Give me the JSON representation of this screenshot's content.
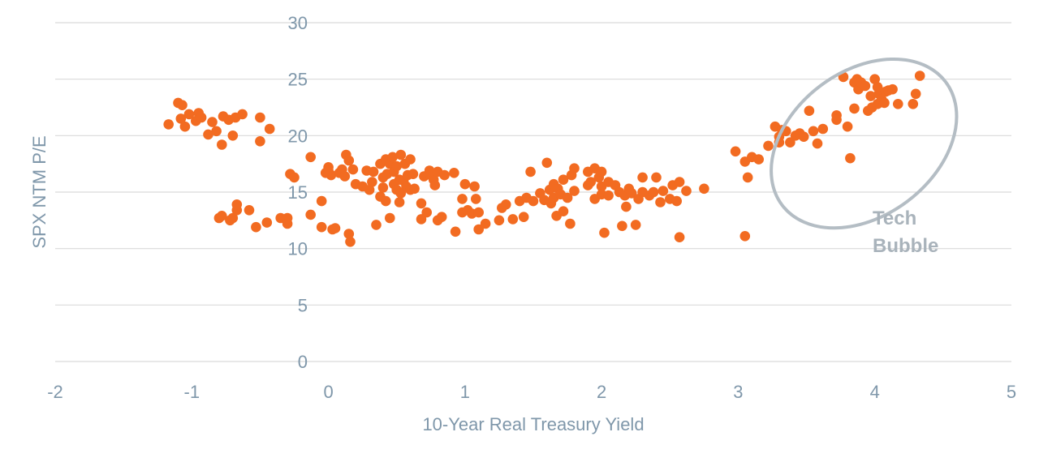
{
  "chart_data": {
    "type": "scatter",
    "title": "",
    "xlabel": "10-Year Real Treasury Yield",
    "ylabel": "SPX NTM P/E",
    "xlim": [
      -2,
      5
    ],
    "ylim": [
      0,
      30
    ],
    "xticks": [
      -2,
      -1,
      0,
      1,
      2,
      3,
      4,
      5
    ],
    "yticks": [
      0,
      5,
      10,
      15,
      20,
      25,
      30
    ],
    "grid": "horizontal",
    "legend": "none",
    "point_color": "#f26b21",
    "gridline_color": "#d9d9d9",
    "annotation": {
      "text_line1": "Tech",
      "text_line2": "Bubble",
      "ellipse_center": [
        3.92,
        19.3
      ],
      "ellipse_radius_x": 0.75,
      "ellipse_radius_y": 6.4,
      "ellipse_color": "#b4bdc4"
    },
    "series": [
      {
        "points": [
          [
            -1.17,
            21.0
          ],
          [
            -1.1,
            22.9
          ],
          [
            -1.08,
            21.5
          ],
          [
            -1.07,
            22.7
          ],
          [
            -1.05,
            20.8
          ],
          [
            -1.02,
            21.9
          ],
          [
            -0.97,
            21.3
          ],
          [
            -0.95,
            22.0
          ],
          [
            -0.93,
            21.6
          ],
          [
            -0.88,
            20.1
          ],
          [
            -0.85,
            21.2
          ],
          [
            -0.82,
            20.4
          ],
          [
            -0.78,
            19.2
          ],
          [
            -0.77,
            21.7
          ],
          [
            -0.73,
            21.4
          ],
          [
            -0.7,
            20.0
          ],
          [
            -0.68,
            21.6
          ],
          [
            -0.63,
            21.9
          ],
          [
            -0.5,
            21.6
          ],
          [
            -0.5,
            19.5
          ],
          [
            -0.43,
            20.6
          ],
          [
            -0.8,
            12.7
          ],
          [
            -0.78,
            12.9
          ],
          [
            -0.72,
            12.5
          ],
          [
            -0.7,
            12.7
          ],
          [
            -0.67,
            13.4
          ],
          [
            -0.67,
            13.9
          ],
          [
            -0.58,
            13.4
          ],
          [
            -0.53,
            11.9
          ],
          [
            -0.45,
            12.3
          ],
          [
            -0.35,
            12.7
          ],
          [
            -0.3,
            12.7
          ],
          [
            -0.3,
            12.2
          ],
          [
            -0.28,
            16.6
          ],
          [
            -0.25,
            16.3
          ],
          [
            -0.13,
            18.1
          ],
          [
            -0.13,
            13.0
          ],
          [
            -0.05,
            14.2
          ],
          [
            -0.05,
            11.9
          ],
          [
            -0.02,
            16.7
          ],
          [
            0.0,
            17.2
          ],
          [
            0.02,
            16.5
          ],
          [
            0.0,
            16.9
          ],
          [
            0.03,
            11.7
          ],
          [
            0.05,
            11.8
          ],
          [
            0.08,
            16.7
          ],
          [
            0.1,
            17.0
          ],
          [
            0.12,
            16.4
          ],
          [
            0.13,
            18.3
          ],
          [
            0.15,
            17.8
          ],
          [
            0.15,
            11.3
          ],
          [
            0.16,
            10.6
          ],
          [
            0.18,
            17.0
          ],
          [
            0.2,
            15.7
          ],
          [
            0.25,
            15.5
          ],
          [
            0.28,
            16.9
          ],
          [
            0.3,
            15.2
          ],
          [
            0.32,
            15.9
          ],
          [
            0.33,
            16.8
          ],
          [
            0.35,
            12.1
          ],
          [
            0.38,
            17.5
          ],
          [
            0.38,
            14.6
          ],
          [
            0.4,
            16.3
          ],
          [
            0.4,
            15.4
          ],
          [
            0.42,
            17.9
          ],
          [
            0.42,
            14.2
          ],
          [
            0.43,
            16.6
          ],
          [
            0.45,
            12.7
          ],
          [
            0.45,
            17.5
          ],
          [
            0.47,
            18.1
          ],
          [
            0.48,
            16.8
          ],
          [
            0.48,
            15.7
          ],
          [
            0.5,
            15.2
          ],
          [
            0.5,
            17.3
          ],
          [
            0.52,
            14.1
          ],
          [
            0.52,
            16.1
          ],
          [
            0.53,
            18.3
          ],
          [
            0.53,
            14.9
          ],
          [
            0.55,
            16.0
          ],
          [
            0.56,
            17.5
          ],
          [
            0.57,
            15.5
          ],
          [
            0.58,
            16.5
          ],
          [
            0.6,
            15.2
          ],
          [
            0.6,
            17.9
          ],
          [
            0.62,
            16.6
          ],
          [
            0.63,
            15.3
          ],
          [
            0.68,
            14.0
          ],
          [
            0.68,
            12.6
          ],
          [
            0.7,
            16.4
          ],
          [
            0.72,
            13.2
          ],
          [
            0.74,
            16.9
          ],
          [
            0.75,
            16.5
          ],
          [
            0.77,
            16.1
          ],
          [
            0.78,
            15.6
          ],
          [
            0.8,
            16.8
          ],
          [
            0.8,
            12.5
          ],
          [
            0.83,
            12.8
          ],
          [
            0.85,
            16.5
          ],
          [
            0.92,
            16.7
          ],
          [
            0.93,
            11.5
          ],
          [
            0.98,
            14.4
          ],
          [
            0.98,
            13.2
          ],
          [
            1.0,
            15.7
          ],
          [
            1.02,
            13.4
          ],
          [
            1.05,
            13.1
          ],
          [
            1.07,
            15.5
          ],
          [
            1.08,
            14.4
          ],
          [
            1.1,
            11.7
          ],
          [
            1.1,
            13.2
          ],
          [
            1.15,
            12.2
          ],
          [
            1.25,
            12.5
          ],
          [
            1.27,
            13.6
          ],
          [
            1.3,
            13.9
          ],
          [
            1.35,
            12.6
          ],
          [
            1.4,
            14.2
          ],
          [
            1.43,
            12.8
          ],
          [
            1.45,
            14.5
          ],
          [
            1.48,
            16.8
          ],
          [
            1.5,
            14.2
          ],
          [
            1.55,
            14.9
          ],
          [
            1.58,
            14.3
          ],
          [
            1.6,
            17.6
          ],
          [
            1.62,
            15.2
          ],
          [
            1.63,
            14.0
          ],
          [
            1.65,
            15.7
          ],
          [
            1.65,
            14.5
          ],
          [
            1.67,
            12.9
          ],
          [
            1.68,
            15.3
          ],
          [
            1.7,
            14.8
          ],
          [
            1.72,
            13.3
          ],
          [
            1.72,
            16.1
          ],
          [
            1.75,
            14.5
          ],
          [
            1.77,
            12.2
          ],
          [
            1.78,
            16.5
          ],
          [
            1.8,
            15.1
          ],
          [
            1.8,
            17.1
          ],
          [
            1.9,
            15.6
          ],
          [
            1.9,
            16.8
          ],
          [
            1.92,
            15.9
          ],
          [
            1.95,
            17.1
          ],
          [
            1.95,
            14.4
          ],
          [
            1.98,
            16.3
          ],
          [
            2.0,
            15.5
          ],
          [
            2.0,
            14.8
          ],
          [
            2.0,
            16.8
          ],
          [
            2.02,
            11.4
          ],
          [
            2.05,
            15.9
          ],
          [
            2.05,
            14.7
          ],
          [
            2.1,
            15.6
          ],
          [
            2.13,
            15.0
          ],
          [
            2.15,
            12.0
          ],
          [
            2.17,
            14.7
          ],
          [
            2.18,
            13.7
          ],
          [
            2.2,
            15.3
          ],
          [
            2.22,
            14.9
          ],
          [
            2.25,
            12.1
          ],
          [
            2.27,
            14.4
          ],
          [
            2.3,
            15.0
          ],
          [
            2.3,
            16.3
          ],
          [
            2.35,
            14.7
          ],
          [
            2.38,
            15.0
          ],
          [
            2.4,
            16.3
          ],
          [
            2.43,
            14.1
          ],
          [
            2.45,
            15.1
          ],
          [
            2.5,
            14.4
          ],
          [
            2.52,
            15.6
          ],
          [
            2.55,
            14.2
          ],
          [
            2.57,
            15.9
          ],
          [
            2.57,
            11.0
          ],
          [
            2.62,
            15.1
          ],
          [
            2.75,
            15.3
          ],
          [
            2.98,
            18.6
          ],
          [
            3.05,
            11.1
          ],
          [
            3.05,
            17.7
          ],
          [
            3.07,
            16.3
          ],
          [
            3.1,
            18.1
          ],
          [
            3.15,
            17.9
          ],
          [
            3.22,
            19.1
          ],
          [
            3.27,
            20.8
          ],
          [
            3.3,
            19.4
          ],
          [
            3.3,
            19.9
          ],
          [
            3.32,
            20.5
          ],
          [
            3.35,
            20.4
          ],
          [
            3.38,
            19.4
          ],
          [
            3.42,
            20.0
          ],
          [
            3.45,
            20.2
          ],
          [
            3.48,
            19.9
          ],
          [
            3.52,
            22.2
          ],
          [
            3.55,
            20.4
          ],
          [
            3.58,
            19.3
          ],
          [
            3.62,
            20.6
          ],
          [
            3.72,
            21.8
          ],
          [
            3.72,
            21.4
          ],
          [
            3.77,
            25.2
          ],
          [
            3.8,
            20.8
          ],
          [
            3.82,
            18.0
          ],
          [
            3.85,
            24.7
          ],
          [
            3.85,
            22.4
          ],
          [
            3.87,
            25.0
          ],
          [
            3.88,
            24.1
          ],
          [
            3.9,
            24.7
          ],
          [
            3.93,
            24.4
          ],
          [
            3.95,
            22.2
          ],
          [
            3.97,
            23.5
          ],
          [
            3.98,
            22.5
          ],
          [
            4.0,
            25.0
          ],
          [
            4.02,
            24.3
          ],
          [
            4.02,
            22.8
          ],
          [
            4.03,
            23.7
          ],
          [
            4.05,
            23.2
          ],
          [
            4.07,
            22.9
          ],
          [
            4.08,
            23.9
          ],
          [
            4.1,
            24.0
          ],
          [
            4.13,
            24.1
          ],
          [
            4.17,
            22.8
          ],
          [
            4.28,
            22.8
          ],
          [
            4.3,
            23.7
          ],
          [
            4.33,
            25.3
          ]
        ]
      }
    ]
  }
}
